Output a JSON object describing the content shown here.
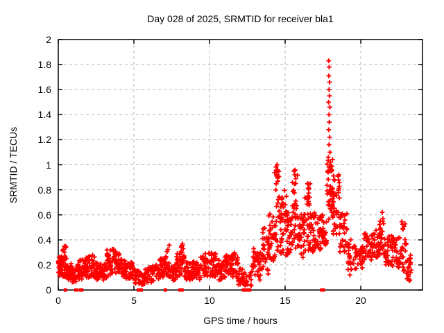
{
  "chart_data": {
    "type": "scatter",
    "title": "Day 028 of 2025, SRMTID for receiver bla1",
    "xlabel": "GPS time / hours",
    "ylabel": "SRMTID / TECUs",
    "xlim": [
      0,
      24.08
    ],
    "ylim": [
      0,
      2
    ],
    "grid": true,
    "legend": "none",
    "background": "#ffffff",
    "axis_color": "#000000",
    "grid_color": "#b5b5b5",
    "marker_color": "#ff0000",
    "marker": "plus",
    "xticks": [
      [
        0,
        "0"
      ],
      [
        5,
        "5"
      ],
      [
        10,
        "10"
      ],
      [
        15,
        "15"
      ],
      [
        20,
        "20"
      ]
    ],
    "yticks": [
      [
        0,
        "0"
      ],
      [
        0.2,
        "0.2"
      ],
      [
        0.4,
        "0.4"
      ],
      [
        0.6,
        "0.6"
      ],
      [
        0.8,
        "0.8"
      ],
      [
        1,
        "1"
      ],
      [
        1.2,
        "1.2"
      ],
      [
        1.4,
        "1.4"
      ],
      [
        1.6,
        "1.6"
      ],
      [
        1.8,
        "1.8"
      ],
      [
        2,
        "2"
      ]
    ],
    "peak": {
      "t": 17.9,
      "v": 1.83
    },
    "series": [
      {
        "name": "srmtid-points",
        "marker": "plus",
        "bins_format": [
          "t_start",
          "t_end",
          "count",
          "value_min",
          "value_max"
        ],
        "bins": [
          [
            0.0,
            0.3,
            34,
            0.1,
            0.27
          ],
          [
            0.3,
            0.6,
            30,
            0.09,
            0.35
          ],
          [
            0.6,
            0.9,
            28,
            0.07,
            0.22
          ],
          [
            0.9,
            1.2,
            26,
            0.06,
            0.18
          ],
          [
            1.2,
            1.6,
            30,
            0.08,
            0.24
          ],
          [
            1.6,
            2.0,
            30,
            0.1,
            0.26
          ],
          [
            2.0,
            2.4,
            30,
            0.1,
            0.28
          ],
          [
            2.4,
            2.8,
            28,
            0.08,
            0.22
          ],
          [
            2.8,
            3.2,
            28,
            0.08,
            0.21
          ],
          [
            3.2,
            3.6,
            30,
            0.11,
            0.33
          ],
          [
            3.6,
            4.1,
            32,
            0.11,
            0.33
          ],
          [
            4.1,
            4.5,
            28,
            0.1,
            0.25
          ],
          [
            4.5,
            5.0,
            30,
            0.08,
            0.22
          ],
          [
            5.0,
            5.35,
            20,
            0.05,
            0.17
          ],
          [
            5.35,
            5.7,
            22,
            0.04,
            0.16
          ],
          [
            5.7,
            6.2,
            28,
            0.06,
            0.18
          ],
          [
            6.2,
            6.7,
            28,
            0.07,
            0.2
          ],
          [
            6.7,
            7.0,
            20,
            0.1,
            0.25
          ],
          [
            7.0,
            7.35,
            24,
            0.11,
            0.37
          ],
          [
            7.35,
            7.8,
            26,
            0.07,
            0.2
          ],
          [
            7.8,
            8.1,
            22,
            0.1,
            0.3
          ],
          [
            8.1,
            8.35,
            20,
            0.12,
            0.37
          ],
          [
            8.35,
            8.8,
            28,
            0.08,
            0.22
          ],
          [
            8.8,
            9.4,
            34,
            0.08,
            0.24
          ],
          [
            9.4,
            9.9,
            30,
            0.1,
            0.3
          ],
          [
            9.9,
            10.4,
            30,
            0.1,
            0.3
          ],
          [
            10.4,
            11.0,
            36,
            0.08,
            0.26
          ],
          [
            11.0,
            11.5,
            30,
            0.1,
            0.28
          ],
          [
            11.5,
            11.9,
            26,
            0.08,
            0.3
          ],
          [
            11.9,
            12.3,
            22,
            0.04,
            0.18
          ],
          [
            12.3,
            12.8,
            14,
            0.02,
            0.14
          ],
          [
            12.8,
            13.0,
            10,
            0.08,
            0.33
          ],
          [
            13.0,
            13.5,
            26,
            0.08,
            0.3
          ],
          [
            13.5,
            13.9,
            26,
            0.12,
            0.5
          ],
          [
            13.9,
            14.3,
            28,
            0.18,
            0.62
          ],
          [
            14.3,
            14.65,
            30,
            0.25,
            1.0
          ],
          [
            14.65,
            15.1,
            36,
            0.25,
            0.8
          ],
          [
            15.1,
            15.45,
            30,
            0.28,
            0.62
          ],
          [
            15.45,
            15.85,
            36,
            0.32,
            0.96
          ],
          [
            15.85,
            16.3,
            32,
            0.25,
            0.62
          ],
          [
            16.3,
            16.65,
            30,
            0.3,
            0.85
          ],
          [
            16.65,
            17.1,
            32,
            0.3,
            0.65
          ],
          [
            17.1,
            17.5,
            28,
            0.32,
            0.6
          ],
          [
            17.5,
            17.75,
            16,
            0.35,
            0.55
          ],
          [
            17.75,
            18.15,
            40,
            0.55,
            1.05
          ],
          [
            18.15,
            18.6,
            36,
            0.42,
            0.92
          ],
          [
            18.6,
            19.1,
            32,
            0.3,
            0.62
          ],
          [
            19.1,
            19.6,
            24,
            0.15,
            0.42
          ],
          [
            19.6,
            20.1,
            26,
            0.16,
            0.36
          ],
          [
            20.1,
            20.7,
            32,
            0.22,
            0.46
          ],
          [
            20.7,
            21.2,
            30,
            0.25,
            0.48
          ],
          [
            21.2,
            21.6,
            26,
            0.25,
            0.62
          ],
          [
            21.6,
            22.1,
            30,
            0.2,
            0.45
          ],
          [
            22.1,
            22.6,
            28,
            0.18,
            0.42
          ],
          [
            22.6,
            23.0,
            26,
            0.14,
            0.55
          ],
          [
            23.0,
            23.35,
            18,
            0.07,
            0.28
          ]
        ],
        "extra_points": [
          [
            17.88,
            1.83
          ],
          [
            17.91,
            1.78
          ],
          [
            17.89,
            1.71
          ],
          [
            17.94,
            1.66
          ],
          [
            17.9,
            1.6
          ],
          [
            17.93,
            1.55
          ],
          [
            17.87,
            1.5
          ],
          [
            17.95,
            1.46
          ],
          [
            17.9,
            1.4
          ],
          [
            17.92,
            1.34
          ],
          [
            17.88,
            1.28
          ],
          [
            17.94,
            1.22
          ],
          [
            17.9,
            1.16
          ],
          [
            17.96,
            1.1
          ],
          [
            17.85,
            1.06
          ],
          [
            17.99,
            1.02
          ],
          [
            18.02,
            0.99
          ],
          [
            14.46,
            1.0
          ],
          [
            14.5,
            0.96
          ],
          [
            14.44,
            0.91
          ],
          [
            14.52,
            0.87
          ],
          [
            15.58,
            0.95
          ],
          [
            15.64,
            0.92
          ],
          [
            15.7,
            0.89
          ],
          [
            16.48,
            0.85
          ],
          [
            16.52,
            0.81
          ],
          [
            19.28,
            0.12
          ],
          [
            21.42,
            0.62
          ],
          [
            21.46,
            0.57
          ],
          [
            12.92,
            0.33
          ],
          [
            23.25,
            0.08
          ]
        ]
      },
      {
        "name": "zero-flag-squares",
        "marker": "square",
        "points_t": [
          0.47,
          1.17,
          1.45,
          1.55,
          5.3,
          5.48,
          7.08,
          8.05,
          8.18,
          12.25,
          12.33,
          12.41,
          12.49,
          12.57,
          12.65,
          17.42,
          17.52
        ],
        "value": 0
      }
    ]
  }
}
